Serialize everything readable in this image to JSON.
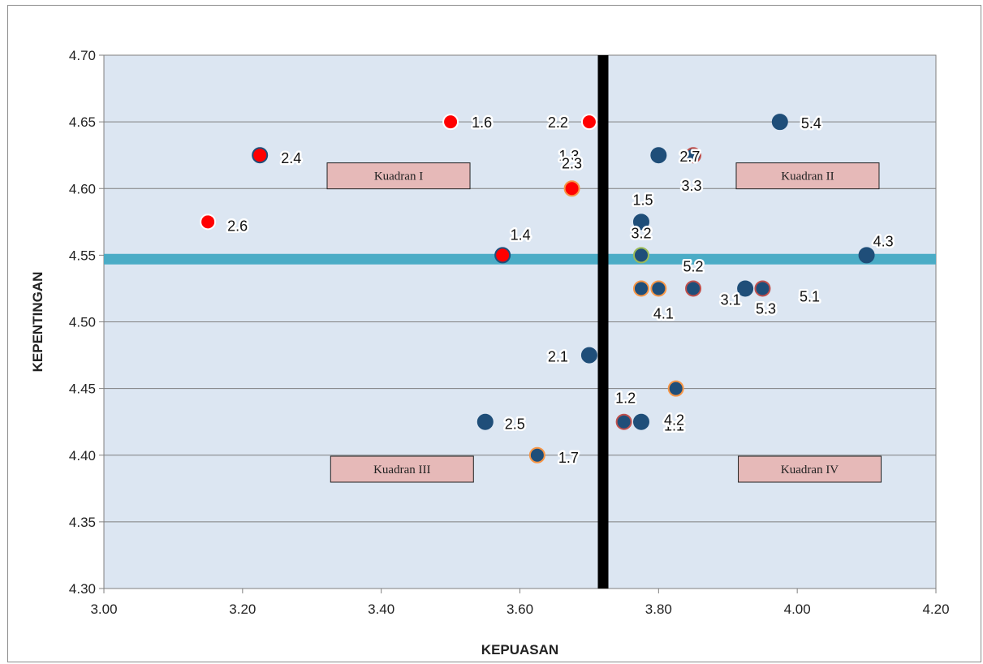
{
  "chart_data": {
    "type": "scatter",
    "title": "",
    "xlabel": "KEPUASAN",
    "ylabel": "KEPENTINGAN",
    "xlim": [
      3.0,
      4.2
    ],
    "ylim": [
      4.3,
      4.7
    ],
    "x_ticks": [
      "3.00",
      "3.20",
      "3.40",
      "3.60",
      "3.80",
      "4.00",
      "4.20"
    ],
    "y_ticks": [
      "4.30",
      "4.35",
      "4.40",
      "4.45",
      "4.50",
      "4.55",
      "4.60",
      "4.65",
      "4.70"
    ],
    "grid": "horizontal",
    "plot_background": "#dce6f2",
    "divider_x": {
      "value": 3.72,
      "color": "#000000"
    },
    "divider_y": {
      "value": 4.547,
      "color": "#4bacc6"
    },
    "colors": {
      "red": "#ff0000",
      "navy": "#1f4e79",
      "navy_outline_red": "#c0504d",
      "navy_outline_orange": "#f79646"
    },
    "points": [
      {
        "label": "1.6",
        "x": 3.5,
        "y": 4.65,
        "fill": "#ff0000",
        "stroke": "#ffffff",
        "dx": 26,
        "dy": 0,
        "anchor": "start"
      },
      {
        "label": "2.2",
        "x": 3.7,
        "y": 4.65,
        "fill": "#ff0000",
        "stroke": "#ffffff",
        "dx": -26,
        "dy": 0,
        "anchor": "end"
      },
      {
        "label": "2.4",
        "x": 3.225,
        "y": 4.625,
        "fill": "#ff0000",
        "stroke": "#1f4e79",
        "dx": 26,
        "dy": 3,
        "anchor": "start"
      },
      {
        "label": "1.3",
        "x": 3.69,
        "y": 4.625,
        "fill": "none",
        "stroke": "none",
        "dx": -4,
        "dy": 0,
        "anchor": "end"
      },
      {
        "label": "2.3",
        "x": 3.675,
        "y": 4.6,
        "fill": "#ff0000",
        "stroke": "#f79646",
        "dx": 0,
        "dy": -32,
        "anchor": "middle"
      },
      {
        "label": "2.6",
        "x": 3.15,
        "y": 4.575,
        "fill": "#ff0000",
        "stroke": "#ffffff",
        "dx": 24,
        "dy": 4,
        "anchor": "start"
      },
      {
        "label": "1.4",
        "x": 3.575,
        "y": 4.55,
        "fill": "#ff0000",
        "stroke": "#1f4e79",
        "dx": 22,
        "dy": -26,
        "anchor": "middle"
      },
      {
        "label": "5.4",
        "x": 3.975,
        "y": 4.65,
        "fill": "#1f4e79",
        "stroke": "#1f4e79",
        "dx": 26,
        "dy": 1,
        "anchor": "start"
      },
      {
        "label": "2.7",
        "x": 3.8,
        "y": 4.625,
        "fill": "#1f4e79",
        "stroke": "#1f4e79",
        "dx": 26,
        "dy": 1,
        "anchor": "start"
      },
      {
        "label": "3.3",
        "x": 3.85,
        "y": 4.625,
        "fill": "#1f4e79",
        "stroke": "#c0504d",
        "dx": -2,
        "dy": 37,
        "anchor": "middle"
      },
      {
        "label": "1.5",
        "x": 3.775,
        "y": 4.575,
        "fill": "#1f4e79",
        "stroke": "#1f4e79",
        "dx": 2,
        "dy": -28,
        "anchor": "middle"
      },
      {
        "label": "3.2",
        "x": 3.775,
        "y": 4.55,
        "fill": "#1f4e79",
        "stroke": "#9bbb59",
        "dx": 0,
        "dy": -28,
        "anchor": "middle"
      },
      {
        "label": "4.3",
        "x": 4.1,
        "y": 4.55,
        "fill": "#1f4e79",
        "stroke": "#1f4e79",
        "dx": 8,
        "dy": -18,
        "anchor": "start"
      },
      {
        "label": "4.1",
        "x": 3.8,
        "y": 4.525,
        "fill": "#1f4e79",
        "stroke": "#f79646",
        "dx": 6,
        "dy": 30,
        "anchor": "middle"
      },
      {
        "label": "",
        "x": 3.775,
        "y": 4.525,
        "fill": "#1f4e79",
        "stroke": "#f79646",
        "dx": 0,
        "dy": 0,
        "anchor": "middle"
      },
      {
        "label": "5.2",
        "x": 3.85,
        "y": 4.525,
        "fill": "#1f4e79",
        "stroke": "#c0504d",
        "dx": 0,
        "dy": -28,
        "anchor": "middle"
      },
      {
        "label": "3.1",
        "x": 3.925,
        "y": 4.525,
        "fill": "#1f4e79",
        "stroke": "#1f4e79",
        "dx": -18,
        "dy": 13,
        "anchor": "middle"
      },
      {
        "label": "5.3",
        "x": 3.95,
        "y": 4.525,
        "fill": "#1f4e79",
        "stroke": "#c0504d",
        "dx": 4,
        "dy": 24,
        "anchor": "middle"
      },
      {
        "label": "5.1",
        "x": 3.95,
        "y": 4.525,
        "fill": "none",
        "stroke": "none",
        "dx": 58,
        "dy": 9,
        "anchor": "middle"
      },
      {
        "label": "2.1",
        "x": 3.7,
        "y": 4.475,
        "fill": "#1f4e79",
        "stroke": "#1f4e79",
        "dx": -26,
        "dy": 1,
        "anchor": "end"
      },
      {
        "label": "",
        "x": 3.825,
        "y": 4.45,
        "fill": "#1f4e79",
        "stroke": "#f79646",
        "dx": 0,
        "dy": 0,
        "anchor": "middle"
      },
      {
        "label": "1.2",
        "x": 3.75,
        "y": 4.425,
        "fill": "#1f4e79",
        "stroke": "#c0504d",
        "dx": 2,
        "dy": -30,
        "anchor": "middle"
      },
      {
        "label": "1.1",
        "x": 3.775,
        "y": 4.425,
        "fill": "#1f4e79",
        "stroke": "#1f4e79",
        "dx": 28,
        "dy": 4,
        "anchor": "start"
      },
      {
        "label": "4.2",
        "x": 3.775,
        "y": 4.425,
        "fill": "none",
        "stroke": "none",
        "dx": 28,
        "dy": -3,
        "anchor": "start"
      },
      {
        "label": "2.5",
        "x": 3.55,
        "y": 4.425,
        "fill": "#1f4e79",
        "stroke": "#1f4e79",
        "dx": 24,
        "dy": 2,
        "anchor": "start"
      },
      {
        "label": "1.7",
        "x": 3.625,
        "y": 4.4,
        "fill": "#1f4e79",
        "stroke": "#f79646",
        "dx": 26,
        "dy": 2,
        "anchor": "start"
      }
    ],
    "quadrants": [
      {
        "label": "Kuadran I",
        "x": 3.425,
        "y": 4.6095
      },
      {
        "label": "Kuadran II",
        "x": 4.015,
        "y": 4.6095
      },
      {
        "label": "Kuadran III",
        "x": 3.43,
        "y": 4.3895
      },
      {
        "label": "Kuadran IV",
        "x": 4.018,
        "y": 4.3895
      }
    ],
    "quadrant_box_fill": "#e6b9b8"
  }
}
